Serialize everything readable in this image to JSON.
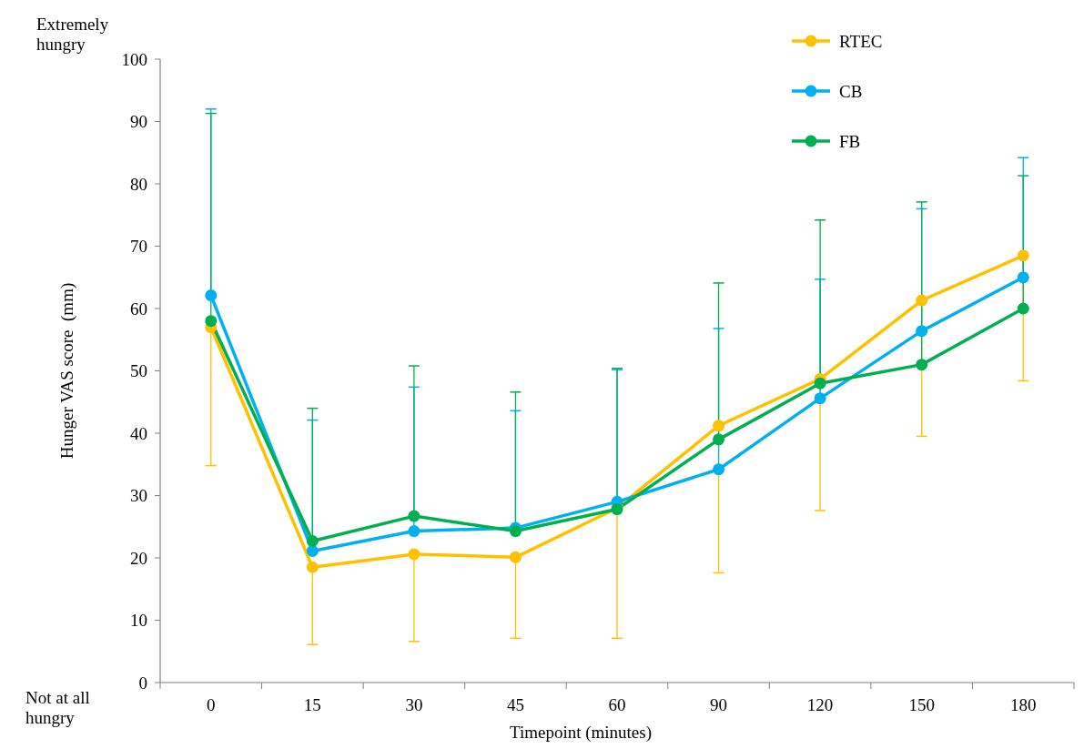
{
  "chart_data": {
    "type": "line",
    "xlabel": "Timepoint (minutes)",
    "ylabel": "Hunger VAS score  (mm)",
    "categories": [
      "0",
      "15",
      "30",
      "45",
      "60",
      "90",
      "120",
      "150",
      "180"
    ],
    "series": [
      {
        "name": "RTEC",
        "color": "#ffc000",
        "values": [
          57,
          18.5,
          20.6,
          20.1,
          28,
          41.2,
          48.7,
          61.3,
          68.5
        ],
        "errors": [
          [
            34.8,
            57
          ],
          [
            6.1,
            18.5
          ],
          [
            6.6,
            20.6
          ],
          [
            7.1,
            20.1
          ],
          [
            7.1,
            28
          ],
          [
            17.6,
            41.2
          ],
          [
            27.6,
            48.7
          ],
          [
            39.5,
            61.3
          ],
          [
            48.4,
            68.5
          ]
        ]
      },
      {
        "name": "CB",
        "color": "#00b0f0",
        "values": [
          62.1,
          21.1,
          24.3,
          24.8,
          29,
          34.2,
          45.6,
          56.4,
          65
        ],
        "errors": [
          [
            62.1,
            92
          ],
          [
            21.1,
            42.1
          ],
          [
            24.3,
            47.4
          ],
          [
            24.8,
            43.6
          ],
          [
            29,
            50.2
          ],
          [
            34.2,
            56.8
          ],
          [
            45.6,
            64.7
          ],
          [
            56.4,
            76
          ],
          [
            65,
            84.2
          ]
        ]
      },
      {
        "name": "FB",
        "color": "#00b050",
        "values": [
          58,
          22.7,
          26.7,
          24.3,
          27.8,
          39,
          48,
          51,
          60
        ],
        "errors": [
          [
            58,
            91.3
          ],
          [
            22.7,
            44
          ],
          [
            26.7,
            50.8
          ],
          [
            24.3,
            46.6
          ],
          [
            27.8,
            50.4
          ],
          [
            39,
            64.1
          ],
          [
            48,
            74.2
          ],
          [
            51,
            77.1
          ],
          [
            60,
            81.3
          ]
        ]
      }
    ],
    "ylim": [
      0,
      100
    ],
    "yticks": [
      0,
      10,
      20,
      30,
      40,
      50,
      60,
      70,
      80,
      90,
      100
    ],
    "annotations": [
      "Extremely hungry",
      "Not at all hungry"
    ],
    "legend": "top right",
    "marker": "circle",
    "line_style": "solid",
    "grid": false
  }
}
